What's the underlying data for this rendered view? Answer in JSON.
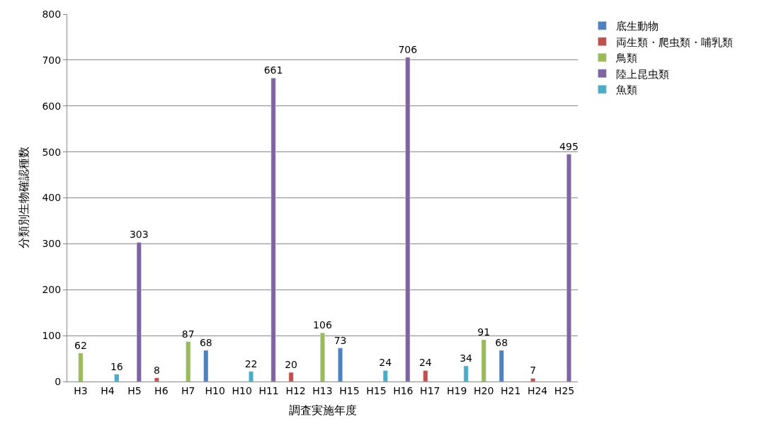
{
  "chart_data": {
    "type": "bar",
    "xlabel": "調査実施年度",
    "ylabel": "分類別生物確認種数",
    "categories": [
      "H3",
      "H4",
      "H5",
      "H6",
      "H7",
      "H10",
      "H10",
      "H11",
      "H12",
      "H13",
      "H15",
      "H15",
      "H16",
      "H17",
      "H19",
      "H20",
      "H21",
      "H24",
      "H25"
    ],
    "series": [
      {
        "name": "底生動物",
        "color": "#4f81bd",
        "values": [
          null,
          null,
          null,
          null,
          null,
          68,
          null,
          null,
          null,
          null,
          73,
          null,
          null,
          null,
          null,
          null,
          68,
          null,
          null
        ]
      },
      {
        "name": "両生類・爬虫類・哺乳類",
        "color": "#c0504d",
        "values": [
          null,
          null,
          null,
          8,
          null,
          null,
          null,
          null,
          20,
          null,
          null,
          null,
          null,
          24,
          null,
          null,
          null,
          7,
          null
        ]
      },
      {
        "name": "鳥類",
        "color": "#9bbb59",
        "values": [
          62,
          null,
          null,
          null,
          87,
          null,
          null,
          null,
          null,
          106,
          null,
          null,
          null,
          null,
          null,
          91,
          null,
          null,
          null
        ]
      },
      {
        "name": "陸上昆虫類",
        "color": "#8064a2",
        "values": [
          null,
          null,
          303,
          null,
          null,
          null,
          null,
          661,
          null,
          null,
          null,
          null,
          706,
          null,
          null,
          null,
          null,
          null,
          495
        ]
      },
      {
        "name": "魚類",
        "color": "#4bacc6",
        "values": [
          null,
          16,
          null,
          null,
          null,
          null,
          22,
          null,
          null,
          null,
          null,
          24,
          null,
          null,
          34,
          null,
          null,
          null,
          null
        ]
      }
    ],
    "ylim": [
      0,
      800
    ],
    "yticks": [
      0,
      100,
      200,
      300,
      400,
      500,
      600,
      700,
      800
    ],
    "grid": "y",
    "legend": "top right",
    "data_labels": true
  }
}
